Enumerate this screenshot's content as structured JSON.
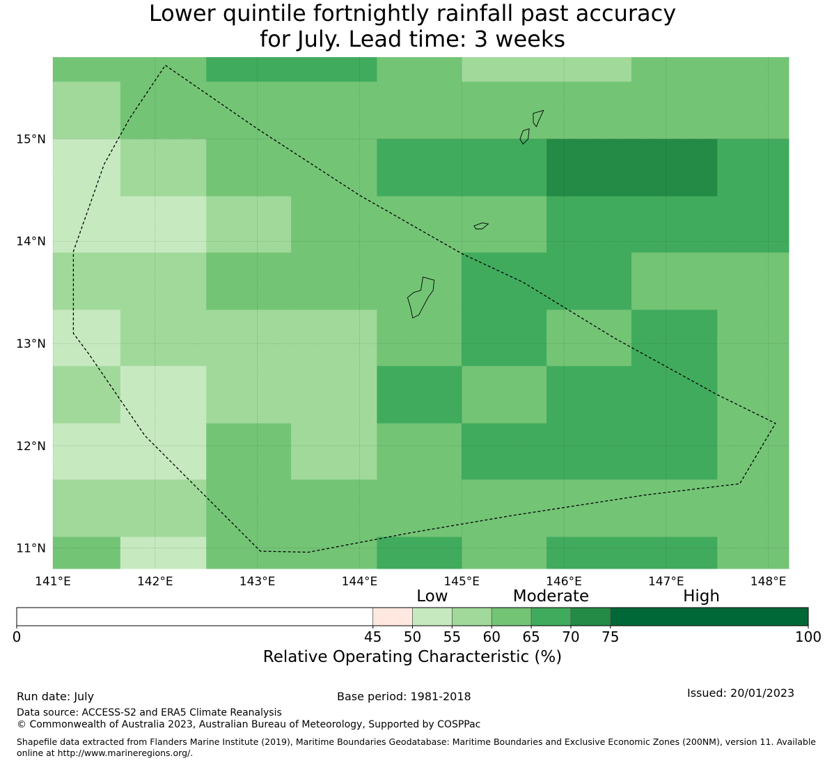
{
  "title": {
    "line1": "Lower quintile fortnightly rainfall past accuracy",
    "line2": "for July. Lead time: 3 weeks"
  },
  "map": {
    "lon_ticks": [
      "141°E",
      "142°E",
      "143°E",
      "144°E",
      "145°E",
      "146°E",
      "147°E",
      "148°E"
    ],
    "lat_ticks": [
      "15°N",
      "14°N",
      "13°N",
      "12°N",
      "11°N"
    ],
    "lon_range": [
      141.0,
      148.2
    ],
    "lat_range": [
      10.8,
      15.8
    ],
    "grid_cols_lon": [
      141.0,
      141.66,
      142.5,
      143.33,
      144.17,
      145.0,
      145.83,
      146.66,
      147.5,
      148.2
    ],
    "grid_rows_lat": [
      15.8,
      15.56,
      15.0,
      14.44,
      13.89,
      13.33,
      12.78,
      12.22,
      11.67,
      11.11,
      10.8
    ],
    "color_classes": {
      "1": "#c7e9c0",
      "2": "#a1d99b",
      "3": "#74c476",
      "4": "#41ab5d",
      "5": "#238b45"
    },
    "cell_classes": [
      [
        3,
        3,
        4,
        4,
        3,
        2,
        2,
        3,
        3
      ],
      [
        2,
        3,
        3,
        3,
        3,
        3,
        3,
        3,
        3
      ],
      [
        1,
        2,
        3,
        3,
        4,
        4,
        5,
        5,
        4
      ],
      [
        1,
        1,
        2,
        3,
        3,
        3,
        4,
        4,
        4
      ],
      [
        2,
        2,
        3,
        3,
        3,
        4,
        4,
        3,
        3
      ],
      [
        1,
        2,
        2,
        2,
        3,
        4,
        3,
        4,
        3
      ],
      [
        2,
        1,
        2,
        2,
        4,
        3,
        4,
        4,
        3
      ],
      [
        1,
        1,
        3,
        2,
        3,
        4,
        4,
        4,
        3
      ],
      [
        2,
        2,
        3,
        3,
        3,
        3,
        3,
        3,
        3
      ],
      [
        3,
        1,
        3,
        3,
        4,
        3,
        4,
        4,
        3
      ]
    ],
    "eez_boundary": [
      [
        142.1,
        15.72
      ],
      [
        143.0,
        15.1
      ],
      [
        144.0,
        14.45
      ],
      [
        145.0,
        13.88
      ],
      [
        145.6,
        13.6
      ],
      [
        146.5,
        13.05
      ],
      [
        147.5,
        12.5
      ],
      [
        148.07,
        12.22
      ],
      [
        147.72,
        11.63
      ],
      [
        146.8,
        11.52
      ],
      [
        145.5,
        11.32
      ],
      [
        144.5,
        11.15
      ],
      [
        143.5,
        10.96
      ],
      [
        143.03,
        10.97
      ],
      [
        141.9,
        12.1
      ],
      [
        141.35,
        12.9
      ],
      [
        141.2,
        13.1
      ],
      [
        141.2,
        13.9
      ],
      [
        141.5,
        14.75
      ],
      [
        141.75,
        15.2
      ],
      [
        142.1,
        15.72
      ]
    ],
    "islands": {
      "guam": [
        [
          144.62,
          13.65
        ],
        [
          144.73,
          13.62
        ],
        [
          144.72,
          13.52
        ],
        [
          144.67,
          13.45
        ],
        [
          144.58,
          13.28
        ],
        [
          144.52,
          13.25
        ],
        [
          144.5,
          13.35
        ],
        [
          144.47,
          13.45
        ],
        [
          144.53,
          13.5
        ],
        [
          144.6,
          13.52
        ]
      ],
      "rota": [
        [
          145.12,
          14.15
        ],
        [
          145.2,
          14.18
        ],
        [
          145.26,
          14.17
        ],
        [
          145.2,
          14.12
        ],
        [
          145.14,
          14.12
        ]
      ],
      "tinian": [
        [
          145.6,
          15.08
        ],
        [
          145.66,
          15.1
        ],
        [
          145.65,
          15.0
        ],
        [
          145.6,
          14.95
        ],
        [
          145.57,
          15.0
        ]
      ],
      "saipan": [
        [
          145.7,
          15.25
        ],
        [
          145.8,
          15.28
        ],
        [
          145.75,
          15.17
        ],
        [
          145.73,
          15.12
        ],
        [
          145.7,
          15.16
        ]
      ]
    }
  },
  "colorbar": {
    "categories": [
      {
        "label": "Low",
        "at": 52.5
      },
      {
        "label": "Moderate",
        "at": 67.5
      },
      {
        "label": "High",
        "at": 86.5
      }
    ],
    "boundaries": [
      0,
      45,
      50,
      55,
      60,
      65,
      70,
      75,
      100
    ],
    "tick_labels": [
      "0",
      "45",
      "50",
      "55",
      "60",
      "65",
      "70",
      "75",
      "100"
    ],
    "colors": [
      "#ffffff",
      "#fee8e0",
      "#c7e9c0",
      "#a1d99b",
      "#74c476",
      "#41ab5d",
      "#238b45",
      "#006837"
    ],
    "label": "Relative Operating Characteristic (%)"
  },
  "footer": {
    "run_date": "Run date: July",
    "base_period": "Base period: 1981-2018",
    "issued": "Issued: 20/01/2023",
    "data_source": "Data source: ACCESS-S2 and ERA5 Climate Reanalysis",
    "copyright": "© Commonwealth of Australia 2023, Australian Bureau of Meteorology, Supported by COSPPac",
    "shapefile": "Shapefile data extracted from Flanders Marine Institute (2019), Maritime Boundaries Geodatabase: Maritime Boundaries and Exclusive Economic Zones (200NM), version 11. Available online at http://www.marineregions.org/."
  }
}
